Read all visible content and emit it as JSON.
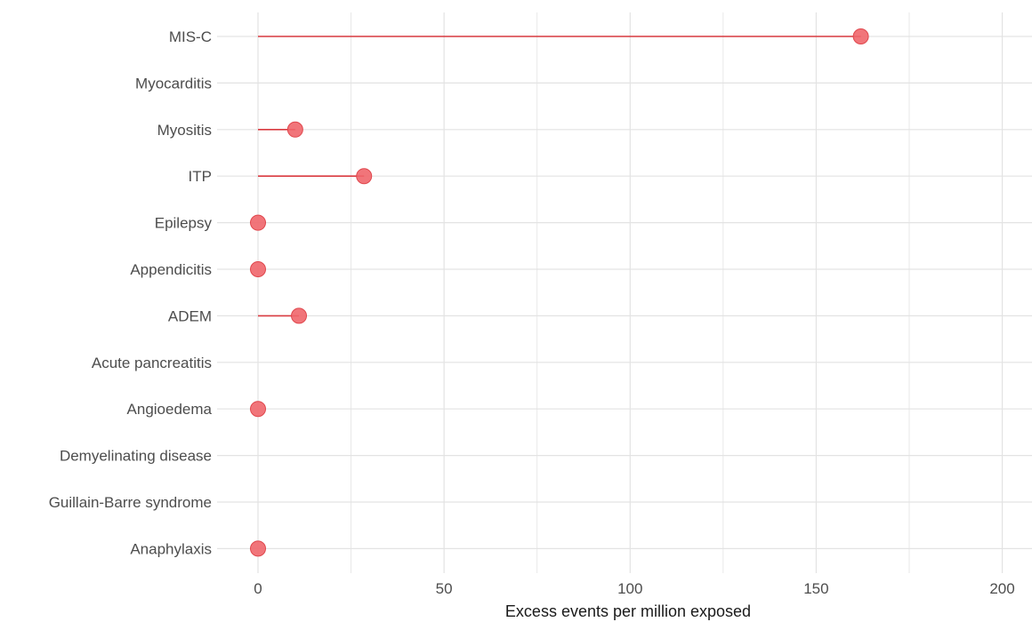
{
  "chart_data": {
    "type": "lollipop",
    "title": "",
    "xlabel": "Excess events per million exposed",
    "ylabel": "",
    "xlim": [
      -11,
      208
    ],
    "x_ticks": [
      0,
      50,
      100,
      150,
      200
    ],
    "x_tick_labels": [
      "0",
      "50",
      "100",
      "150",
      "200"
    ],
    "grid": true,
    "colors": {
      "point": "#f0666b",
      "stem": "#d93a40",
      "grid": "#e3e3e3"
    },
    "categories": [
      "MIS-C",
      "Myocarditis",
      "Myositis",
      "ITP",
      "Epilepsy",
      "Appendicitis",
      "ADEM",
      "Acute pancreatitis",
      "Angioedema",
      "Demyelinating disease",
      "Guillain-Barre syndrome",
      "Anaphylaxis"
    ],
    "values": [
      162,
      null,
      10,
      28.5,
      0,
      0,
      11,
      null,
      0,
      null,
      null,
      0
    ]
  }
}
